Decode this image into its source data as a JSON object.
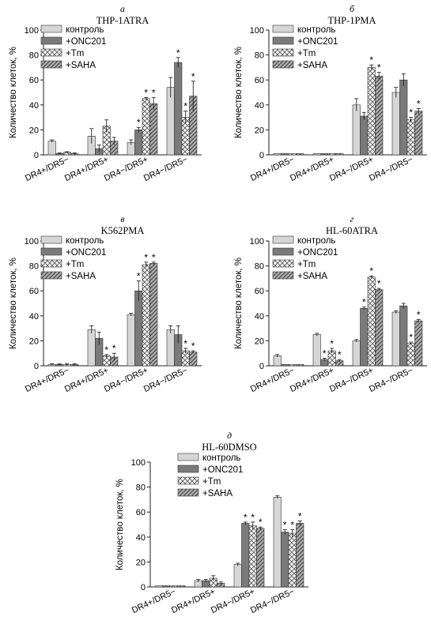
{
  "figure": {
    "ylabel": "Количество клеток, %",
    "categories": [
      "DR4+/DR5−",
      "DR4+/DR5+",
      "DR4−/DR5+",
      "DR4−/DR5−"
    ],
    "legend": [
      "контроль",
      "+ONC201",
      "+Tm",
      "+SAHA"
    ],
    "series_style": {
      "контроль": {
        "fill": "#d6d6d6",
        "pattern": "solid"
      },
      "+ONC201": {
        "fill": "#7a7a7a",
        "pattern": "solid"
      },
      "+Tm": {
        "fill": "#f2f2f2",
        "pattern": "crosshatch"
      },
      "+SAHA": {
        "fill": "#9e9e9e",
        "pattern": "diagonal"
      }
    },
    "significance_marker": "*"
  },
  "chart_data": [
    {
      "type": "bar",
      "letter": "а",
      "title": "THP-1ATRA",
      "ylabel": "Количество клеток, %",
      "ylim": [
        0,
        100
      ],
      "yticks": [
        0,
        20,
        40,
        60,
        80,
        100
      ],
      "legend_position": "top-center",
      "categories": [
        "DR4+/DR5−",
        "DR4+/DR5+",
        "DR4−/DR5+",
        "DR4−/DR5−"
      ],
      "series": [
        {
          "name": "контроль",
          "values": [
            11,
            15,
            10,
            54
          ],
          "errors": [
            1,
            6,
            2,
            8
          ],
          "sig": [
            false,
            false,
            false,
            false
          ]
        },
        {
          "name": "+ONC201",
          "values": [
            1,
            5,
            20,
            74
          ],
          "errors": [
            0.5,
            3,
            2,
            4
          ],
          "sig": [
            false,
            false,
            true,
            true
          ]
        },
        {
          "name": "+Tm",
          "values": [
            2,
            23,
            45,
            30
          ],
          "errors": [
            0.5,
            5,
            1,
            5
          ],
          "sig": [
            false,
            false,
            true,
            true
          ]
        },
        {
          "name": "+SAHA",
          "values": [
            1,
            11,
            41,
            47
          ],
          "errors": [
            0.5,
            3,
            5,
            12
          ],
          "sig": [
            false,
            false,
            true,
            true
          ]
        }
      ]
    },
    {
      "type": "bar",
      "letter": "б",
      "title": "THP-1PMA",
      "ylabel": "Количество клеток, %",
      "ylim": [
        0,
        100
      ],
      "yticks": [
        0,
        20,
        40,
        60,
        80,
        100
      ],
      "legend_position": "top-center",
      "categories": [
        "DR4+/DR5−",
        "DR4+/DR5+",
        "DR4−/DR5+",
        "DR4−/DR5−"
      ],
      "series": [
        {
          "name": "контроль",
          "values": [
            1,
            1,
            40,
            50
          ],
          "errors": [
            0,
            0,
            5,
            4
          ],
          "sig": [
            false,
            false,
            false,
            false
          ]
        },
        {
          "name": "+ONC201",
          "values": [
            1,
            1,
            31,
            60
          ],
          "errors": [
            0,
            0,
            3,
            5
          ],
          "sig": [
            false,
            false,
            false,
            false
          ]
        },
        {
          "name": "+Tm",
          "values": [
            1,
            1,
            70,
            28
          ],
          "errors": [
            0,
            0,
            2,
            2
          ],
          "sig": [
            false,
            false,
            true,
            true
          ]
        },
        {
          "name": "+SAHA",
          "values": [
            1,
            1,
            63,
            35
          ],
          "errors": [
            0,
            0,
            3,
            2
          ],
          "sig": [
            false,
            false,
            true,
            true
          ]
        }
      ]
    },
    {
      "type": "bar",
      "letter": "в",
      "title": "K562PMA",
      "ylabel": "Количество клеток, %",
      "ylim": [
        0,
        100
      ],
      "yticks": [
        0,
        20,
        40,
        60,
        80,
        100
      ],
      "legend_position": "top-center",
      "categories": [
        "DR4+/DR5−",
        "DR4+/DR5+",
        "DR4−/DR5+",
        "DR4−/DR5−"
      ],
      "series": [
        {
          "name": "контроль",
          "values": [
            1,
            29,
            41,
            29
          ],
          "errors": [
            0.5,
            3,
            1,
            3
          ],
          "sig": [
            false,
            false,
            false,
            false
          ]
        },
        {
          "name": "+ONC201",
          "values": [
            1,
            22,
            60,
            25
          ],
          "errors": [
            0.5,
            5,
            8,
            7
          ],
          "sig": [
            false,
            false,
            true,
            false
          ]
        },
        {
          "name": "+Tm",
          "values": [
            1,
            8,
            81,
            12
          ],
          "errors": [
            0.5,
            1,
            2,
            2
          ],
          "sig": [
            false,
            true,
            true,
            true
          ]
        },
        {
          "name": "+SAHA",
          "values": [
            1,
            7,
            82,
            11
          ],
          "errors": [
            0.5,
            3,
            1,
            1
          ],
          "sig": [
            false,
            true,
            true,
            true
          ]
        }
      ]
    },
    {
      "type": "bar",
      "letter": "г",
      "title": "HL-60ATRA",
      "ylabel": "Количество клеток, %",
      "ylim": [
        0,
        100
      ],
      "yticks": [
        0,
        20,
        40,
        60,
        80,
        100
      ],
      "legend_position": "top-center",
      "categories": [
        "DR4+/DR5−",
        "DR4+/DR5+",
        "DR4−/DR5+",
        "DR4−/DR5−"
      ],
      "series": [
        {
          "name": "контроль",
          "values": [
            8,
            25,
            20,
            43
          ],
          "errors": [
            1,
            1,
            1,
            1
          ],
          "sig": [
            false,
            false,
            false,
            false
          ]
        },
        {
          "name": "+ONC201",
          "values": [
            1,
            5,
            46,
            48
          ],
          "errors": [
            0,
            1,
            1,
            2
          ],
          "sig": [
            false,
            true,
            true,
            false
          ]
        },
        {
          "name": "+Tm",
          "values": [
            1,
            12,
            71,
            18
          ],
          "errors": [
            0,
            2,
            1,
            1
          ],
          "sig": [
            false,
            true,
            true,
            true
          ]
        },
        {
          "name": "+SAHA",
          "values": [
            1,
            4,
            61,
            36
          ],
          "errors": [
            0,
            1,
            1,
            1
          ],
          "sig": [
            false,
            true,
            true,
            true
          ]
        }
      ]
    },
    {
      "type": "bar",
      "letter": "д",
      "title": "HL-60DMSO",
      "ylabel": "Количество клеток, %",
      "ylim": [
        0,
        100
      ],
      "yticks": [
        0,
        20,
        40,
        60,
        80,
        100
      ],
      "legend_position": "top-center",
      "categories": [
        "DR4+/DR5−",
        "DR4+/DR5+",
        "DR4−/DR5+",
        "DR4−/DR5−"
      ],
      "series": [
        {
          "name": "контроль",
          "values": [
            1,
            5,
            18,
            72
          ],
          "errors": [
            0,
            1,
            1,
            1
          ],
          "sig": [
            false,
            false,
            false,
            false
          ]
        },
        {
          "name": "+ONC201",
          "values": [
            1,
            5,
            51,
            44
          ],
          "errors": [
            0,
            1,
            1,
            2
          ],
          "sig": [
            false,
            false,
            true,
            true
          ]
        },
        {
          "name": "+Tm",
          "values": [
            1,
            7,
            49,
            43
          ],
          "errors": [
            0,
            2,
            3,
            3
          ],
          "sig": [
            false,
            false,
            true,
            true
          ]
        },
        {
          "name": "+SAHA",
          "values": [
            1,
            3,
            47,
            51
          ],
          "errors": [
            0,
            1,
            1,
            2
          ],
          "sig": [
            false,
            false,
            true,
            true
          ]
        }
      ]
    }
  ]
}
